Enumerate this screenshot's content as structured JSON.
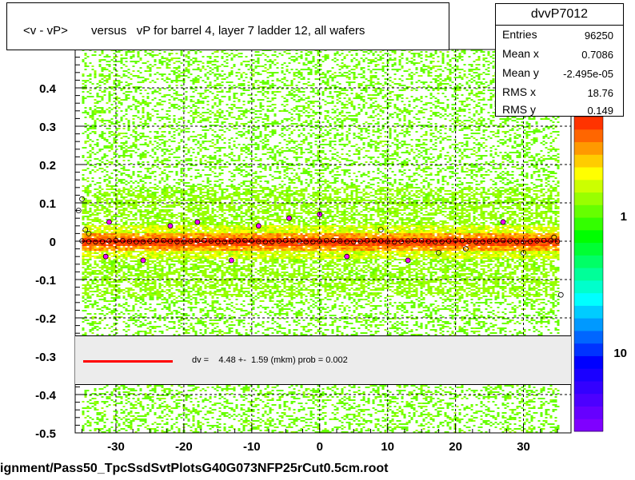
{
  "title": "<v - vP>       versus   vP for barrel 4, layer 7 ladder 12, all wafers",
  "stats": {
    "name": "dvvP7012",
    "rows": [
      {
        "key": "Entries",
        "value": "96250"
      },
      {
        "key": "Mean x",
        "value": "0.7086"
      },
      {
        "key": "Mean y",
        "value": "-2.495e-05"
      },
      {
        "key": "RMS x",
        "value": "18.76"
      },
      {
        "key": "RMS y",
        "value": "0.149"
      }
    ]
  },
  "fit_label": "dv =    4.48 +-  1.59 (mkm) prob = 0.002",
  "file_caption": "ignment/Pass50_TpcSsdSvtPlotsG40G073NFP25rCut0.5cm.root",
  "colors": {
    "fit_line": "#ff0000",
    "profile_marker": "#ff00ff",
    "grid": "#000000"
  },
  "palette": {
    "colors": [
      "#7f00ff",
      "#6600ff",
      "#4c00ff",
      "#3300ff",
      "#1a00ff",
      "#0000ff",
      "#0033ff",
      "#0066ff",
      "#0099ff",
      "#00ccff",
      "#00ffff",
      "#00ffcc",
      "#00ff99",
      "#00ff66",
      "#00ff33",
      "#00ff00",
      "#33ff00",
      "#66ff00",
      "#99ff00",
      "#ccff00",
      "#ffff00",
      "#ffcc00",
      "#ff9900",
      "#ff6600",
      "#ff3300"
    ],
    "tick_labels": [
      "1",
      "10"
    ]
  },
  "chart_data": {
    "type": "heatmap",
    "title": "<v - vP>       versus   vP for barrel 4, layer 7 ladder 12, all wafers",
    "xlim": [
      -36,
      37
    ],
    "ylim": [
      -0.5,
      0.5
    ],
    "x_ticks": [
      -30,
      -20,
      -10,
      0,
      10,
      20,
      30
    ],
    "x_tick_labels": [
      "-30",
      "-20",
      "-10",
      "0",
      "10",
      "20",
      "30"
    ],
    "y_ticks": [
      -0.5,
      -0.4,
      -0.3,
      -0.2,
      -0.1,
      0,
      0.1,
      0.2,
      0.3,
      0.4
    ],
    "y_tick_labels": [
      "-0.5",
      "-0.4",
      "-0.3",
      "-0.2",
      "-0.1",
      "0",
      "0.1",
      "0.2",
      "0.3",
      "0.4"
    ],
    "grid": true,
    "data_x_range": [
      -35,
      35
    ],
    "fit": {
      "type": "line",
      "y_value": 0.0
    },
    "profile": [
      {
        "x": -35.5,
        "y": 0.08
      },
      {
        "x": -35,
        "y": 0.11
      },
      {
        "x": -34.5,
        "y": 0.03
      },
      {
        "x": -34,
        "y": 0.02
      },
      {
        "x": -31,
        "y": 0.05
      },
      {
        "x": -31.5,
        "y": -0.04
      },
      {
        "x": -26,
        "y": -0.05
      },
      {
        "x": -22,
        "y": 0.04
      },
      {
        "x": -18,
        "y": 0.05
      },
      {
        "x": -13,
        "y": -0.05
      },
      {
        "x": -9,
        "y": 0.04
      },
      {
        "x": -4.5,
        "y": 0.06
      },
      {
        "x": 0,
        "y": 0.07
      },
      {
        "x": 4,
        "y": -0.04
      },
      {
        "x": 9,
        "y": 0.03
      },
      {
        "x": 13,
        "y": -0.05
      },
      {
        "x": 17.5,
        "y": -0.03
      },
      {
        "x": 21.5,
        "y": -0.02
      },
      {
        "x": 27,
        "y": 0.05
      },
      {
        "x": 30,
        "y": -0.03
      },
      {
        "x": 34.5,
        "y": 0.01
      },
      {
        "x": 35.5,
        "y": -0.14
      }
    ]
  }
}
